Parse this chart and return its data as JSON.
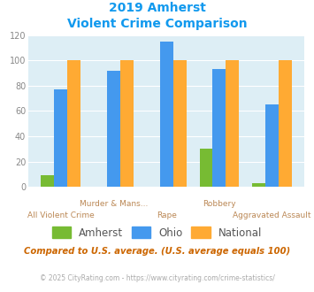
{
  "title_line1": "2019 Amherst",
  "title_line2": "Violent Crime Comparison",
  "categories": [
    "All Violent Crime",
    "Murder & Mans...",
    "Rape",
    "Robbery",
    "Aggravated Assault"
  ],
  "cat_labels_row1": [
    "",
    "Murder & Mans...",
    "",
    "Robbery",
    ""
  ],
  "cat_labels_row2": [
    "All Violent Crime",
    "",
    "Rape",
    "",
    "Aggravated Assault"
  ],
  "amherst": [
    9,
    0,
    0,
    30,
    3
  ],
  "ohio": [
    77,
    92,
    115,
    93,
    65
  ],
  "national": [
    100,
    100,
    100,
    100,
    100
  ],
  "amherst_color": "#77bb33",
  "ohio_color": "#4499ee",
  "national_color": "#ffaa33",
  "title_color": "#1199ee",
  "bg_color": "#ddeef5",
  "ylim": [
    0,
    120
  ],
  "yticks": [
    0,
    20,
    40,
    60,
    80,
    100,
    120
  ],
  "footnote1": "Compared to U.S. average. (U.S. average equals 100)",
  "footnote2": "© 2025 CityRating.com - https://www.cityrating.com/crime-statistics/",
  "footnote1_color": "#cc6600",
  "footnote2_color": "#aaaaaa",
  "footnote2_link_color": "#4499ee",
  "label_color": "#bb8855",
  "legend_labels": [
    "Amherst",
    "Ohio",
    "National"
  ],
  "bar_width": 0.25
}
